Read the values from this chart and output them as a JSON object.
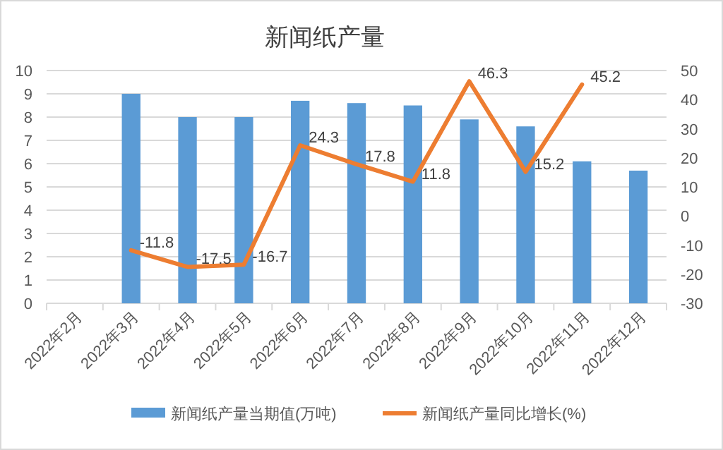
{
  "chart_data": {
    "type": "bar",
    "title": "新闻纸产量",
    "categories": [
      "2022年2月",
      "2022年3月",
      "2022年4月",
      "2022年5月",
      "2022年6月",
      "2022年7月",
      "2022年8月",
      "2022年9月",
      "2022年10月",
      "2022年11月",
      "2022年12月"
    ],
    "series": [
      {
        "name": "新闻纸产量当期值(万吨)",
        "color": "#5b9bd5",
        "values": [
          null,
          9.0,
          8.0,
          8.0,
          8.7,
          8.6,
          8.5,
          7.9,
          7.6,
          6.1,
          5.7
        ]
      },
      {
        "name": "新闻纸产量同比增长(%)",
        "type": "line",
        "axis": "y2",
        "color": "#ed7d31",
        "values": [
          null,
          -11.8,
          -17.5,
          -16.7,
          24.3,
          17.8,
          11.8,
          46.3,
          15.2,
          45.2,
          null
        ],
        "value_labels": [
          null,
          "-11.8",
          "-17.5",
          "-16.7",
          "24.3",
          "17.8",
          "11.8",
          "46.3",
          "15.2",
          "45.2",
          null
        ]
      }
    ],
    "ylim": [
      0,
      10
    ],
    "yticks": [
      0,
      1,
      2,
      3,
      4,
      5,
      6,
      7,
      8,
      9,
      10
    ],
    "y2lim": [
      -30,
      50
    ],
    "y2ticks": [
      -30,
      -20,
      -10,
      0,
      10,
      20,
      30,
      40,
      50
    ],
    "grid": "y",
    "legend": "bottom"
  }
}
